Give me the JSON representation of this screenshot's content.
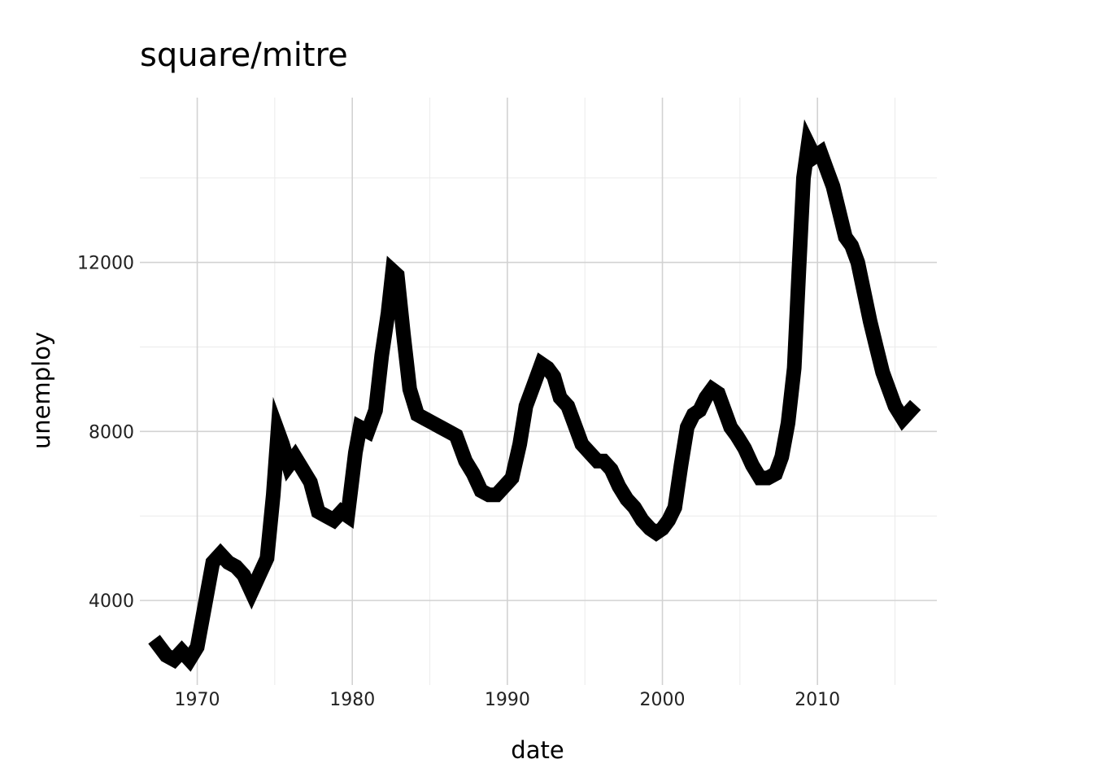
{
  "chart_data": {
    "type": "line",
    "title": "square/mitre",
    "xlabel": "date",
    "ylabel": "unemploy",
    "xlim": [
      1966.3,
      2017.7
    ],
    "ylim": [
      2000,
      15900
    ],
    "x_ticks": [
      "1970",
      "1980",
      "1990",
      "2000",
      "2010"
    ],
    "y_ticks": [
      "4000",
      "8000",
      "12000"
    ],
    "grid": true,
    "line_color": "#000000",
    "line_join": "mitre",
    "line_cap": "square",
    "series": [
      {
        "x": [
          1967.5,
          1968.0,
          1968.5,
          1969.0,
          1969.5,
          1970.0,
          1970.5,
          1971.0,
          1971.5,
          1972.0,
          1972.5,
          1973.0,
          1973.5,
          1974.0,
          1974.5,
          1974.9,
          1975.2,
          1975.5,
          1975.9,
          1976.3,
          1976.8,
          1977.3,
          1977.8,
          1978.3,
          1978.8,
          1979.3,
          1979.7,
          1980.2,
          1980.5,
          1981.0,
          1981.5,
          1981.9,
          1982.3,
          1982.6,
          1982.9,
          1983.3,
          1983.7,
          1984.2,
          1984.7,
          1985.2,
          1985.7,
          1986.2,
          1986.7,
          1987.3,
          1987.8,
          1988.3,
          1988.8,
          1989.3,
          1989.8,
          1990.3,
          1990.8,
          1991.2,
          1991.7,
          1992.2,
          1992.6,
          1993.0,
          1993.4,
          1993.9,
          1994.3,
          1994.8,
          1995.3,
          1995.8,
          1996.2,
          1996.7,
          1997.2,
          1997.7,
          1998.2,
          1998.7,
          1999.2,
          1999.6,
          2000.0,
          2000.4,
          2000.8,
          2001.2,
          2001.6,
          2002.0,
          2002.4,
          2002.8,
          2003.2,
          2003.6,
          2004.0,
          2004.4,
          2004.8,
          2005.3,
          2005.8,
          2006.3,
          2006.8,
          2007.3,
          2007.7,
          2008.1,
          2008.5,
          2008.8,
          2009.1,
          2009.4,
          2009.8,
          2010.2,
          2010.6,
          2011.0,
          2011.4,
          2011.8,
          2012.2,
          2012.6,
          2013.0,
          2013.4,
          2013.8,
          2014.2,
          2014.6,
          2015.0,
          2015.5,
          2016.0
        ],
        "y": [
          2944,
          2700,
          2600,
          2800,
          2600,
          2900,
          3900,
          4900,
          5100,
          4900,
          4800,
          4600,
          4200,
          4600,
          5000,
          6500,
          8000,
          7700,
          7200,
          7400,
          7100,
          6800,
          6100,
          6000,
          5900,
          6100,
          6000,
          7500,
          8100,
          8000,
          8500,
          9800,
          10800,
          11800,
          11700,
          10300,
          9000,
          8400,
          8300,
          8200,
          8100,
          8000,
          7900,
          7300,
          7000,
          6600,
          6500,
          6500,
          6700,
          6900,
          7700,
          8600,
          9100,
          9600,
          9500,
          9300,
          8800,
          8600,
          8200,
          7700,
          7500,
          7300,
          7300,
          7100,
          6700,
          6400,
          6200,
          5900,
          5700,
          5600,
          5700,
          5900,
          6200,
          7200,
          8100,
          8400,
          8500,
          8800,
          9000,
          8900,
          8500,
          8100,
          7900,
          7600,
          7200,
          6900,
          6900,
          7000,
          7400,
          8200,
          9500,
          11800,
          14000,
          14800,
          14500,
          14600,
          14200,
          13800,
          13200,
          12600,
          12400,
          12000,
          11300,
          10600,
          10000,
          9400,
          9000,
          8600,
          8300,
          8500
        ]
      }
    ]
  }
}
